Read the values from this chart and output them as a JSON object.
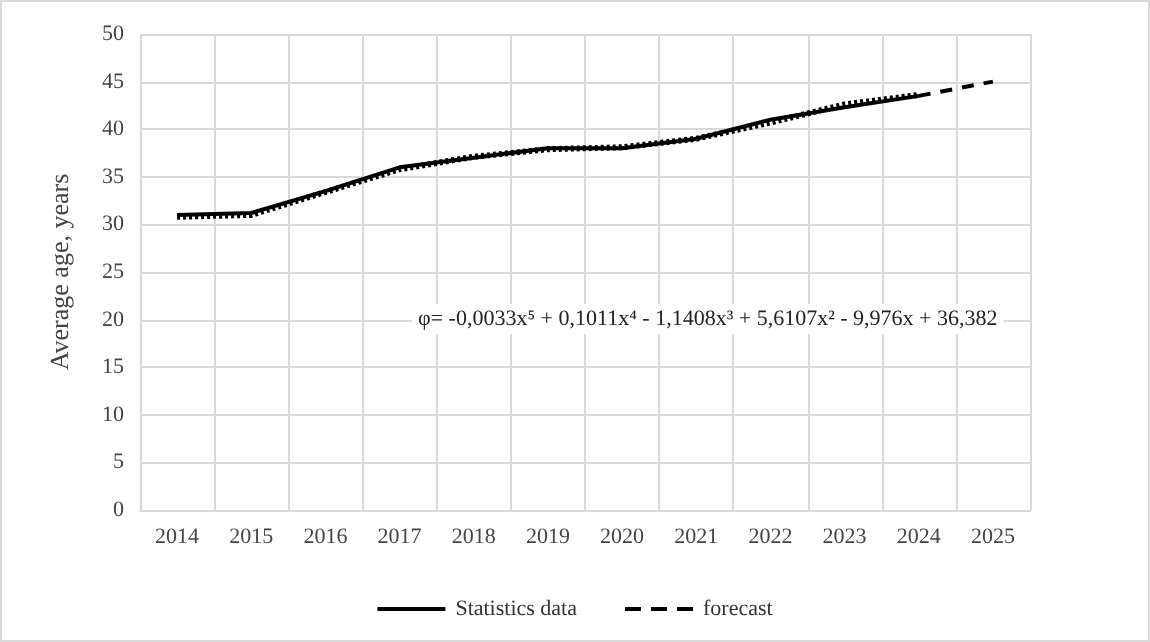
{
  "chart_data": {
    "type": "line",
    "ylabel": "Average age, years",
    "categories": [
      "2014",
      "2015",
      "2016",
      "2017",
      "2018",
      "2019",
      "2020",
      "2021",
      "2022",
      "2023",
      "2024",
      "2025"
    ],
    "series": [
      {
        "name": "Statistics data",
        "color": "#000000",
        "line_style": "solid",
        "values": [
          31,
          31.2,
          33.5,
          36,
          37,
          38,
          38,
          39,
          41,
          42.3,
          43.5,
          null
        ]
      },
      {
        "name": "forecast",
        "color": "#000000",
        "line_style": "dashed",
        "values": [
          null,
          null,
          null,
          null,
          null,
          null,
          null,
          null,
          null,
          null,
          43.5,
          45
        ]
      },
      {
        "color": "#000000",
        "line_style": "dotted",
        "values": [
          30.8,
          31,
          33.4,
          35.8,
          37.1,
          37.9,
          38.1,
          39,
          40.7,
          42.6,
          43.6,
          null
        ]
      }
    ],
    "ylim": [
      0,
      50
    ],
    "yticks": [
      0,
      5,
      10,
      15,
      20,
      25,
      30,
      35,
      40,
      45,
      50
    ],
    "annotations": [
      "φ= -0,0033x⁵ + 0,1011x⁴ - 1,1408x³ + 5,6107x² - 9,976x + 36,382"
    ],
    "grid": true,
    "legend": "bottom",
    "marker": "none"
  }
}
